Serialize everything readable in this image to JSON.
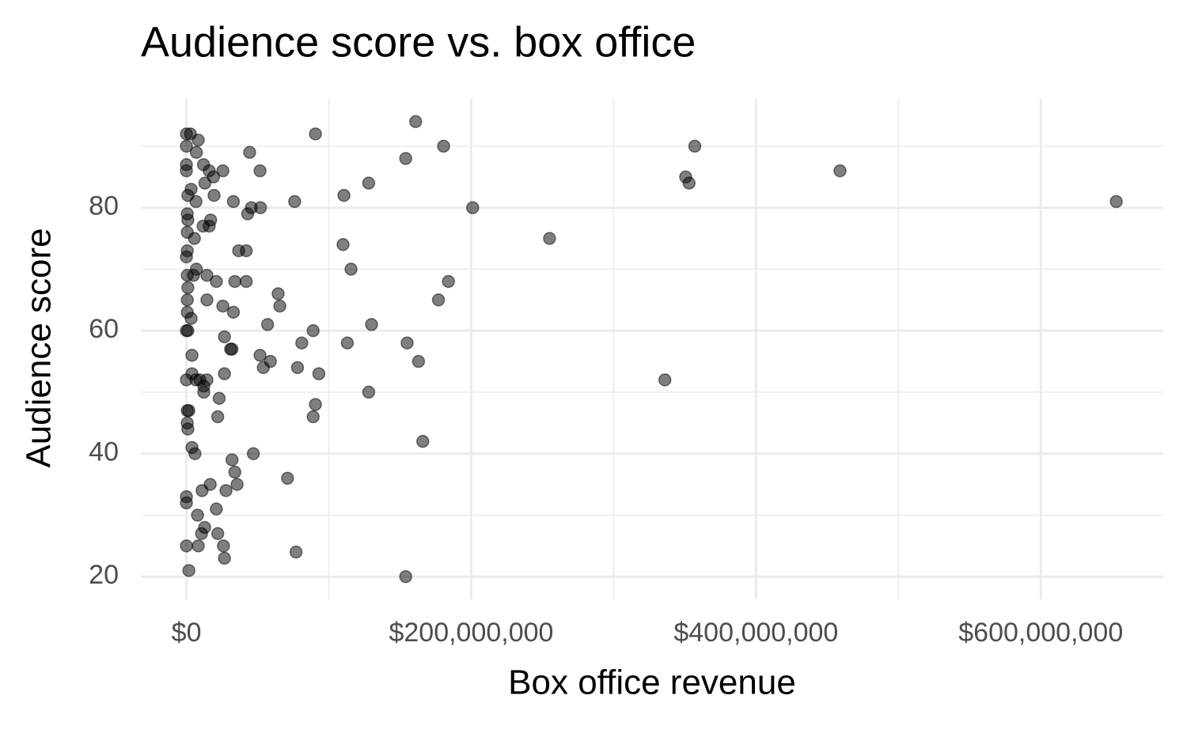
{
  "chart_data": {
    "type": "scatter",
    "title": "Audience score vs. box office",
    "x_label": "Box office revenue",
    "y_label": "Audience score",
    "color": "#000000",
    "opacity": 0.5,
    "grid": true,
    "xlim": [
      -32000000,
      686000000
    ],
    "xticks": [
      {
        "value": 0,
        "label": "$0"
      },
      {
        "value": 200000000,
        "label": "$200,000,000"
      },
      {
        "value": 400000000,
        "label": "$400,000,000"
      },
      {
        "value": 600000000,
        "label": "$600,000,000"
      }
    ],
    "x_minor_ticks": [
      100000000,
      300000000,
      500000000
    ],
    "ylim": [
      16.3,
      97.7
    ],
    "yticks": [
      20,
      40,
      60,
      80
    ],
    "y_minor_ticks": [
      30,
      50,
      70,
      90
    ],
    "x": [
      0,
      2800000,
      161000000,
      90600000,
      180600000,
      357000000,
      8300000,
      0,
      44400000,
      154000000,
      7000000,
      12000000,
      0,
      0,
      25600000,
      51700000,
      459000000,
      350600000,
      353000000,
      19000000,
      16000000,
      13000000,
      128000000,
      3300000,
      110600000,
      19400000,
      1000000,
      6700000,
      33000000,
      76000000,
      653000000,
      201000000,
      52000000,
      45600000,
      43000000,
      600000,
      1000000,
      17000000,
      16000000,
      11700000,
      600000,
      5600000,
      255000000,
      110000000,
      36700000,
      42000000,
      600000,
      0,
      115600000,
      7000000,
      600000,
      5000000,
      14400000,
      21000000,
      34000000,
      42000000,
      184000000,
      1000000,
      64400000,
      600000,
      14400000,
      177000000,
      65600000,
      25600000,
      33000000,
      600000,
      3300000,
      130000000,
      57000000,
      0,
      1000000,
      89000000,
      26700000,
      81000000,
      113000000,
      155000000,
      31000000,
      32000000,
      3900000,
      51700000,
      59000000,
      163000000,
      54000000,
      78000000,
      3900000,
      26700000,
      93000000,
      336000000,
      0,
      6700000,
      9400000,
      14400000,
      12200000,
      12200000,
      128000000,
      23000000,
      90600000,
      600000,
      1700000,
      22000000,
      89000000,
      600000,
      1000000,
      166000000,
      3900000,
      6000000,
      47000000,
      32000000,
      34000000,
      71000000,
      35600000,
      16700000,
      11000000,
      27800000,
      0,
      0,
      21000000,
      7800000,
      12800000,
      10600000,
      22000000,
      0,
      8300000,
      26000000,
      77000000,
      26700000,
      1700000,
      154000000
    ],
    "y": [
      92,
      92,
      94,
      92,
      90,
      90,
      91,
      90,
      89,
      88,
      89,
      87,
      87,
      86,
      86,
      86,
      86,
      85,
      84,
      85,
      86,
      84,
      84,
      83,
      82,
      82,
      82,
      81,
      81,
      81,
      81,
      80,
      80,
      80,
      79,
      79,
      78,
      78,
      77,
      77,
      76,
      75,
      75,
      74,
      73,
      73,
      73,
      72,
      70,
      70,
      69,
      69,
      69,
      68,
      68,
      68,
      68,
      67,
      66,
      65,
      65,
      65,
      64,
      64,
      63,
      63,
      62,
      61,
      61,
      60,
      60,
      60,
      59,
      58,
      58,
      58,
      57,
      57,
      56,
      56,
      55,
      55,
      54,
      54,
      53,
      53,
      53,
      52,
      52,
      52,
      52,
      52,
      51,
      50,
      50,
      49,
      48,
      47,
      47,
      46,
      46,
      45,
      44,
      42,
      41,
      40,
      40,
      39,
      37,
      36,
      35,
      35,
      34,
      34,
      33,
      32,
      31,
      30,
      28,
      27,
      27,
      25,
      25,
      25,
      24,
      23,
      21,
      20
    ]
  }
}
